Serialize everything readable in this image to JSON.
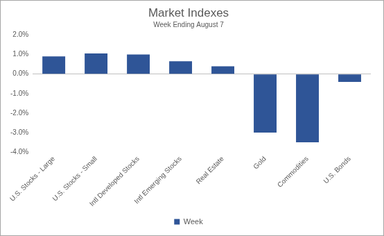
{
  "chart_data": {
    "type": "bar",
    "title": "Market Indexes",
    "subtitle": "Week Ending August 7",
    "categories": [
      "U.S. Stocks - Large",
      "U.S. Stocks - Small",
      "Intl Developed Stocks",
      "Intl Emerging Stocks",
      "Real Estate",
      "Gold",
      "Commodities",
      "U.S. Bonds"
    ],
    "series": [
      {
        "name": "Week",
        "color": "#2f5597",
        "values": [
          0.9,
          1.05,
          1.0,
          0.65,
          0.4,
          -3.0,
          -3.5,
          -0.4
        ]
      }
    ],
    "ylim": [
      -4,
      2
    ],
    "yticks": [
      {
        "value": -4,
        "label": "-4.0%"
      },
      {
        "value": -3,
        "label": "-3.0%"
      },
      {
        "value": -2,
        "label": "-2.0%"
      },
      {
        "value": -1,
        "label": "-1.0%"
      },
      {
        "value": 0,
        "label": "0.0%"
      },
      {
        "value": 1,
        "label": "1.0%"
      },
      {
        "value": 2,
        "label": "2.0%"
      }
    ],
    "grid": false,
    "legend": "bottom"
  }
}
